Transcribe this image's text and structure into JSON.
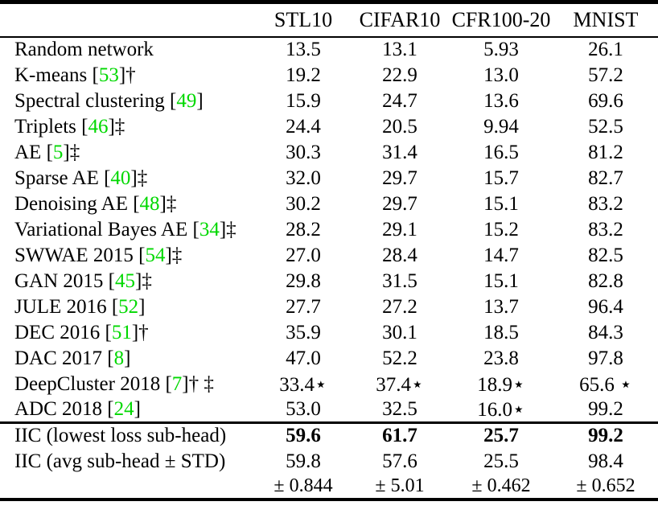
{
  "colors": {
    "citation_green": "#00d800",
    "text": "#000000",
    "background": "#ffffff"
  },
  "table": {
    "columns": [
      "STL10",
      "CIFAR10",
      "CFR100-20",
      "MNIST"
    ],
    "rows": [
      {
        "pre": "Random network",
        "cite": "",
        "post": "",
        "vals": [
          "13.5",
          "13.1",
          "5.93",
          "26.1"
        ]
      },
      {
        "pre": "K-means [",
        "cite": "53",
        "post": "]†",
        "vals": [
          "19.2",
          "22.9",
          "13.0",
          "57.2"
        ]
      },
      {
        "pre": "Spectral clustering [",
        "cite": "49",
        "post": "]",
        "vals": [
          "15.9",
          "24.7",
          "13.6",
          "69.6"
        ]
      },
      {
        "pre": "Triplets [",
        "cite": "46",
        "post": "]‡",
        "vals": [
          "24.4",
          "20.5",
          "9.94",
          "52.5"
        ]
      },
      {
        "pre": "AE [",
        "cite": "5",
        "post": "]‡",
        "vals": [
          "30.3",
          "31.4",
          "16.5",
          "81.2"
        ]
      },
      {
        "pre": "Sparse AE [",
        "cite": "40",
        "post": "]‡",
        "vals": [
          "32.0",
          "29.7",
          "15.7",
          "82.7"
        ]
      },
      {
        "pre": "Denoising AE [",
        "cite": "48",
        "post": "]‡",
        "vals": [
          "30.2",
          "29.7",
          "15.1",
          "83.2"
        ]
      },
      {
        "pre": "Variational Bayes AE [",
        "cite": "34",
        "post": "]‡",
        "vals": [
          "28.2",
          "29.1",
          "15.2",
          "83.2"
        ]
      },
      {
        "pre": "SWWAE 2015 [",
        "cite": "54",
        "post": "]‡",
        "vals": [
          "27.0",
          "28.4",
          "14.7",
          "82.5"
        ]
      },
      {
        "pre": "GAN 2015 [",
        "cite": "45",
        "post": "]‡",
        "vals": [
          "29.8",
          "31.5",
          "15.1",
          "82.8"
        ]
      },
      {
        "pre": "JULE 2016 [",
        "cite": "52",
        "post": "]",
        "vals": [
          "27.7",
          "27.2",
          "13.7",
          "96.4"
        ]
      },
      {
        "pre": "DEC 2016 [",
        "cite": "51",
        "post": "]†",
        "vals": [
          "35.9",
          "30.1",
          "18.5",
          "84.3"
        ]
      },
      {
        "pre": "DAC 2017 [",
        "cite": "8",
        "post": "]",
        "vals": [
          "47.0",
          "52.2",
          "23.8",
          "97.8"
        ]
      },
      {
        "pre": "DeepCluster 2018 [",
        "cite": "7",
        "post": "]† ‡",
        "vals": [
          "33.4⋆",
          "37.4⋆",
          "18.9⋆",
          "65.6 ⋆"
        ]
      },
      {
        "pre": "ADC 2018 [",
        "cite": "24",
        "post": "]",
        "vals": [
          "53.0",
          "32.5",
          "16.0⋆",
          "99.2"
        ]
      }
    ],
    "iic_rows": [
      {
        "label": "IIC (lowest loss sub-head)",
        "vals": [
          "59.6",
          "61.7",
          "25.7",
          "99.2"
        ],
        "bold": true,
        "std": false
      },
      {
        "label": "IIC (avg sub-head ± STD)",
        "vals": [
          "59.8",
          "57.6",
          "25.5",
          "98.4"
        ],
        "bold": false,
        "std": false
      },
      {
        "label": "",
        "vals": [
          "± 0.844",
          "± 5.01",
          "± 0.462",
          "± 0.652"
        ],
        "bold": false,
        "std": true
      }
    ]
  }
}
